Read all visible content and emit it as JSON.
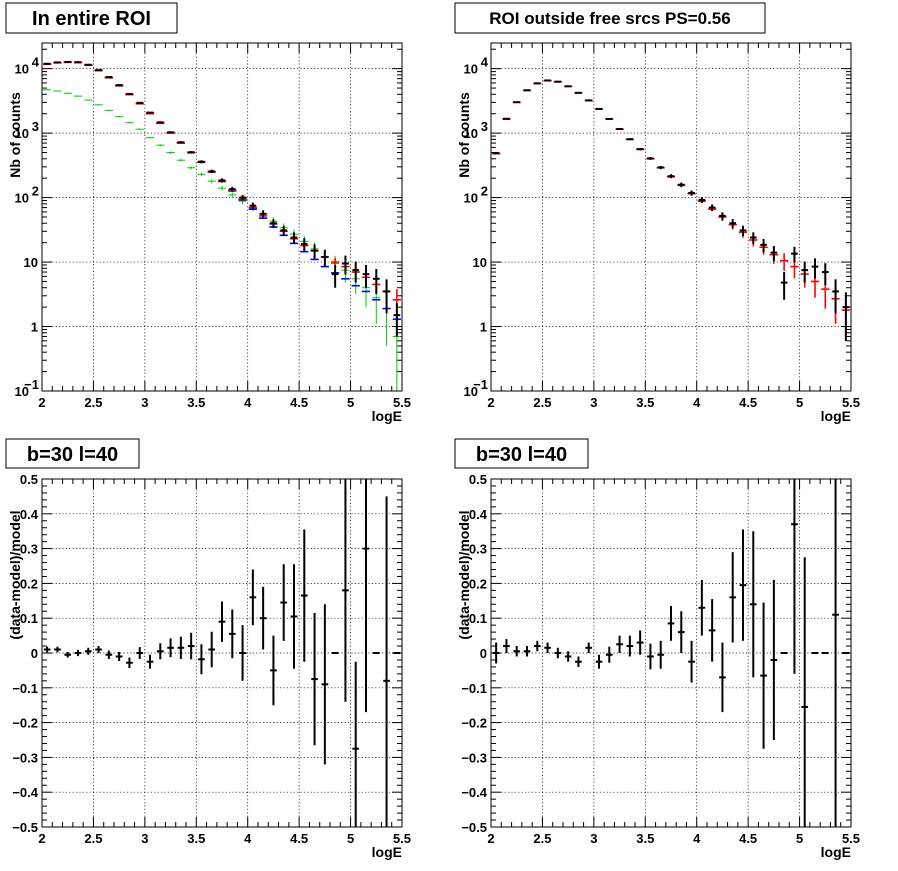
{
  "colors": {
    "data": "#000000",
    "total_model": "#0000ff",
    "model_red": "#ff0000",
    "component_green": "#00cc00"
  },
  "chart_data": [
    {
      "type": "scatter",
      "title": "In entire ROI",
      "xlabel": "logE",
      "ylabel": "Nb of counts",
      "xlim": [
        2,
        5.5
      ],
      "ylim": [
        0.1,
        25000
      ],
      "yscale": "log",
      "grid": true,
      "x_ticks": [
        "2",
        "2.5",
        "3",
        "3.5",
        "4",
        "4.5",
        "5",
        "5.5"
      ],
      "y_ticks": [
        {
          "m": "10",
          "e": "−1",
          "v": 0.1
        },
        {
          "m": "1",
          "e": "",
          "v": 1
        },
        {
          "m": "10",
          "e": "",
          "v": 10
        },
        {
          "m": "10",
          "e": "2",
          "v": 100
        },
        {
          "m": "10",
          "e": "3",
          "v": 1000
        },
        {
          "m": "10",
          "e": "4",
          "v": 10000
        }
      ],
      "series": [
        {
          "color": "#00cc00",
          "x": [
            2.05,
            2.15,
            2.25,
            2.35,
            2.45,
            2.55,
            2.65,
            2.75,
            2.85,
            2.95,
            3.05,
            3.15,
            3.25,
            3.35,
            3.45,
            3.55,
            3.65,
            3.75,
            3.85,
            3.95,
            4.05,
            4.15,
            4.25,
            4.35,
            4.45,
            4.55,
            4.65,
            4.75,
            4.85,
            4.95,
            5.05,
            5.15,
            5.25,
            5.35,
            5.45
          ],
          "y": [
            4700,
            4500,
            4150,
            3750,
            3250,
            2750,
            2250,
            1800,
            1450,
            1150,
            850,
            650,
            500,
            380,
            290,
            230,
            180,
            140,
            110,
            88,
            70,
            56,
            43,
            34,
            27,
            21,
            16,
            12,
            9.5,
            7.5,
            5.5,
            4,
            2.8,
            1.9,
            0.7
          ],
          "yerr": [
            70,
            67,
            64,
            61,
            57,
            52,
            47,
            42,
            38,
            34,
            29,
            25,
            22,
            19,
            17,
            15,
            13,
            12,
            10,
            9,
            8,
            7,
            6.5,
            5.8,
            5.2,
            4.5,
            4,
            3.5,
            3,
            2.7,
            2.3,
            2,
            1.7,
            1.4,
            0.6
          ]
        },
        {
          "color": "#0000ff",
          "x": [
            2.05,
            2.15,
            2.25,
            2.35,
            2.45,
            2.55,
            2.65,
            2.75,
            2.85,
            2.95,
            3.05,
            3.15,
            3.25,
            3.35,
            3.45,
            3.55,
            3.65,
            3.75,
            3.85,
            3.95,
            4.05,
            4.15,
            4.25,
            4.35,
            4.45,
            4.55,
            4.65,
            4.75,
            4.85,
            4.95,
            5.05,
            5.15,
            5.25,
            5.35,
            5.45
          ],
          "y": [
            11800,
            12400,
            12600,
            12500,
            11400,
            9400,
            7300,
            5500,
            4000,
            2900,
            2050,
            1450,
            1020,
            710,
            500,
            355,
            250,
            178,
            127,
            92,
            66,
            48,
            35,
            26,
            19.5,
            14.5,
            11,
            8.5,
            6.8,
            5.5,
            4.3,
            3.5,
            2.6,
            1.9,
            1.3
          ],
          "yerr": [
            0,
            0,
            0,
            0,
            0,
            0,
            0,
            0,
            0,
            0,
            0,
            0,
            0,
            0,
            0,
            0,
            0,
            0,
            0,
            0,
            0,
            0,
            0,
            0,
            0,
            0,
            0,
            0,
            0,
            0,
            0,
            0,
            0,
            0,
            0
          ]
        },
        {
          "color": "#ff0000",
          "x": [
            2.05,
            2.15,
            2.25,
            2.35,
            2.45,
            2.55,
            2.65,
            2.75,
            2.85,
            2.95,
            3.05,
            3.15,
            3.25,
            3.35,
            3.45,
            3.55,
            3.65,
            3.75,
            3.85,
            3.95,
            4.05,
            4.15,
            4.25,
            4.35,
            4.45,
            4.55,
            4.65,
            4.75,
            4.85,
            4.95,
            5.05,
            5.15,
            5.25,
            5.35,
            5.45
          ],
          "y": [
            11700,
            12300,
            12500,
            12400,
            11300,
            9300,
            7200,
            5400,
            3950,
            2850,
            2000,
            1420,
            1000,
            700,
            495,
            352,
            250,
            180,
            130,
            95,
            70,
            52,
            39,
            30,
            23,
            18,
            15,
            12,
            10,
            8.5,
            7,
            5.8,
            4.5,
            3.5,
            2.6
          ],
          "yerr": [
            0,
            0,
            0,
            0,
            0,
            0,
            0,
            0,
            0,
            0,
            0,
            0,
            0,
            0,
            0,
            0,
            0,
            0,
            0,
            0,
            0,
            0,
            0,
            0,
            0,
            0,
            0,
            1.5,
            1.5,
            1.5,
            1.4,
            1.3,
            1.2,
            1.2,
            1.2
          ]
        },
        {
          "color": "#000000",
          "x": [
            2.05,
            2.15,
            2.25,
            2.35,
            2.45,
            2.55,
            2.65,
            2.75,
            2.85,
            2.95,
            3.05,
            3.15,
            3.25,
            3.35,
            3.45,
            3.55,
            3.65,
            3.75,
            3.85,
            3.95,
            4.05,
            4.15,
            4.25,
            4.35,
            4.45,
            4.55,
            4.65,
            4.75,
            4.85,
            4.95,
            5.05,
            5.15,
            5.25,
            5.35,
            5.45
          ],
          "y": [
            11900,
            12500,
            12700,
            12600,
            11500,
            9500,
            7400,
            5550,
            4050,
            2950,
            2080,
            1470,
            1030,
            720,
            505,
            360,
            255,
            185,
            135,
            100,
            75,
            56,
            40,
            31,
            24,
            19,
            15,
            12,
            6.5,
            9.5,
            7.5,
            6.5,
            5.5,
            3.5,
            1.5
          ],
          "yerr": [
            110,
            112,
            113,
            112,
            107,
            97,
            86,
            74,
            64,
            54,
            46,
            38,
            32,
            27,
            22,
            19,
            16,
            14,
            12,
            10,
            8.7,
            7.5,
            6.3,
            5.6,
            4.9,
            4.4,
            3.9,
            3.5,
            2.5,
            3.1,
            2.7,
            2.5,
            2.3,
            1.9,
            0.8
          ]
        }
      ]
    },
    {
      "type": "scatter",
      "title": "ROI outside free srcs PS=0.56",
      "xlabel": "logE",
      "ylabel": "Nb of counts",
      "xlim": [
        2,
        5.5
      ],
      "ylim": [
        0.1,
        25000
      ],
      "yscale": "log",
      "grid": true,
      "x_ticks": [
        "2",
        "2.5",
        "3",
        "3.5",
        "4",
        "4.5",
        "5",
        "5.5"
      ],
      "y_ticks": [
        {
          "m": "10",
          "e": "−1",
          "v": 0.1
        },
        {
          "m": "1",
          "e": "",
          "v": 1
        },
        {
          "m": "10",
          "e": "",
          "v": 10
        },
        {
          "m": "10",
          "e": "2",
          "v": 100
        },
        {
          "m": "10",
          "e": "3",
          "v": 1000
        },
        {
          "m": "10",
          "e": "4",
          "v": 10000
        }
      ],
      "series": [
        {
          "color": "#ff0000",
          "x": [
            2.05,
            2.15,
            2.25,
            2.35,
            2.45,
            2.55,
            2.65,
            2.75,
            2.85,
            2.95,
            3.05,
            3.15,
            3.25,
            3.35,
            3.45,
            3.55,
            3.65,
            3.75,
            3.85,
            3.95,
            4.05,
            4.15,
            4.25,
            4.35,
            4.45,
            4.55,
            4.65,
            4.75,
            4.85,
            4.95,
            5.05,
            5.15,
            5.25,
            5.35,
            5.45
          ],
          "y": [
            480,
            1650,
            3000,
            4600,
            5900,
            6500,
            6250,
            5300,
            4200,
            3200,
            2350,
            1650,
            1150,
            800,
            560,
            400,
            290,
            210,
            155,
            115,
            88,
            66,
            50,
            38,
            29,
            22,
            17,
            13,
            10.5,
            8.5,
            6.5,
            5,
            3.8,
            2.7,
            1.8
          ],
          "yerr": [
            0,
            0,
            0,
            0,
            0,
            0,
            0,
            0,
            0,
            0,
            0,
            0,
            0,
            0,
            0,
            0,
            0,
            0,
            0,
            0,
            0,
            0,
            7,
            6,
            5.2,
            4.5,
            4,
            3.6,
            3.2,
            2.9,
            2.5,
            2.2,
            1.9,
            1.6,
            1.2
          ]
        },
        {
          "color": "#000000",
          "x": [
            2.05,
            2.15,
            2.25,
            2.35,
            2.45,
            2.55,
            2.65,
            2.75,
            2.85,
            2.95,
            3.05,
            3.15,
            3.25,
            3.35,
            3.45,
            3.55,
            3.65,
            3.75,
            3.85,
            3.95,
            4.05,
            4.15,
            4.25,
            4.35,
            4.45,
            4.55,
            4.65,
            4.75,
            4.85,
            4.95,
            5.05,
            5.15,
            5.25,
            5.35,
            5.45
          ],
          "y": [
            490,
            1670,
            3020,
            4620,
            5920,
            6560,
            6280,
            5330,
            4220,
            3220,
            2370,
            1660,
            1160,
            805,
            565,
            405,
            293,
            215,
            158,
            118,
            92,
            70,
            52,
            40,
            31,
            24,
            18.5,
            14,
            4.8,
            13.5,
            7.5,
            8.5,
            7,
            3.5,
            2
          ],
          "yerr": [
            22,
            41,
            55,
            68,
            77,
            81,
            79,
            73,
            65,
            57,
            49,
            41,
            34,
            28,
            24,
            20,
            17,
            15,
            13,
            11,
            9.6,
            8.4,
            7.2,
            6.3,
            5.6,
            4.9,
            4.3,
            3.7,
            2.2,
            3.7,
            2.7,
            2.9,
            2.6,
            1.9,
            1.4
          ]
        }
      ]
    },
    {
      "type": "scatter",
      "title": "b=30 l=40",
      "xlabel": "logE",
      "ylabel": "(data-model)/model",
      "xlim": [
        2,
        5.5
      ],
      "ylim": [
        -0.5,
        0.5
      ],
      "yscale": "linear",
      "grid": true,
      "x_ticks": [
        "2",
        "2.5",
        "3",
        "3.5",
        "4",
        "4.5",
        "5",
        "5.5"
      ],
      "y_ticks": [
        "−0.5",
        "−0.4",
        "−0.3",
        "−0.2",
        "−0.1",
        "0",
        "0.1",
        "0.2",
        "0.3",
        "0.4",
        "0.5"
      ],
      "series": [
        {
          "color": "#000000",
          "x": [
            2.05,
            2.15,
            2.25,
            2.35,
            2.45,
            2.55,
            2.65,
            2.75,
            2.85,
            2.95,
            3.05,
            3.15,
            3.25,
            3.35,
            3.45,
            3.55,
            3.65,
            3.75,
            3.85,
            3.95,
            4.05,
            4.15,
            4.25,
            4.35,
            4.45,
            4.55,
            4.65,
            4.75,
            4.85,
            4.95,
            5.05,
            5.15,
            5.25,
            5.35,
            5.45
          ],
          "y": [
            0.01,
            0.01,
            -0.005,
            0.0,
            0.005,
            0.01,
            -0.005,
            -0.01,
            -0.028,
            0.0,
            -0.025,
            0.005,
            0.015,
            0.015,
            0.02,
            -0.018,
            0.01,
            0.09,
            0.055,
            0.0,
            0.16,
            0.1,
            -0.05,
            0.145,
            0.105,
            0.165,
            -0.075,
            -0.09,
            0.0,
            0.18,
            -0.275,
            0.3,
            0.0,
            -0.08,
            0.0
          ],
          "yerr": [
            0.008,
            0.008,
            0.008,
            0.009,
            0.01,
            0.01,
            0.012,
            0.013,
            0.015,
            0.017,
            0.02,
            0.023,
            0.027,
            0.032,
            0.038,
            0.043,
            0.051,
            0.058,
            0.07,
            0.08,
            0.08,
            0.09,
            0.1,
            0.11,
            0.15,
            0.19,
            0.19,
            0.23,
            0,
            0.32,
            0.25,
            0.47,
            0,
            0.53,
            0
          ]
        }
      ]
    },
    {
      "type": "scatter",
      "title": "b=30 l=40",
      "xlabel": "logE",
      "ylabel": "(data-model)/model",
      "xlim": [
        2,
        5.5
      ],
      "ylim": [
        -0.5,
        0.5
      ],
      "yscale": "linear",
      "grid": true,
      "x_ticks": [
        "2",
        "2.5",
        "3",
        "3.5",
        "4",
        "4.5",
        "5",
        "5.5"
      ],
      "y_ticks": [
        "−0.5",
        "−0.4",
        "−0.3",
        "−0.2",
        "−0.1",
        "0",
        "0.1",
        "0.2",
        "0.3",
        "0.4",
        "0.5"
      ],
      "series": [
        {
          "color": "#000000",
          "x": [
            2.05,
            2.15,
            2.25,
            2.35,
            2.45,
            2.55,
            2.65,
            2.75,
            2.85,
            2.95,
            3.05,
            3.15,
            3.25,
            3.35,
            3.45,
            3.55,
            3.65,
            3.75,
            3.85,
            3.95,
            4.05,
            4.15,
            4.25,
            4.35,
            4.45,
            4.55,
            4.65,
            4.75,
            4.85,
            4.95,
            5.05,
            5.15,
            5.25,
            5.35,
            5.45
          ],
          "y": [
            0.0,
            0.02,
            0.005,
            0.005,
            0.02,
            0.015,
            0.0,
            -0.01,
            -0.025,
            0.015,
            -0.025,
            -0.005,
            0.025,
            0.02,
            0.03,
            -0.01,
            -0.005,
            0.085,
            0.06,
            -0.025,
            0.13,
            0.065,
            -0.07,
            0.16,
            0.195,
            0.14,
            -0.065,
            -0.02,
            0.0,
            0.37,
            -0.155,
            0.0,
            0.0,
            0.11,
            0.0
          ],
          "yerr": [
            0.03,
            0.02,
            0.015,
            0.015,
            0.015,
            0.015,
            0.015,
            0.015,
            0.015,
            0.015,
            0.02,
            0.023,
            0.025,
            0.03,
            0.035,
            0.037,
            0.04,
            0.05,
            0.06,
            0.06,
            0.08,
            0.09,
            0.1,
            0.13,
            0.16,
            0.21,
            0.21,
            0.23,
            0,
            0.43,
            0.43,
            0,
            0,
            0.82,
            0
          ]
        }
      ]
    }
  ]
}
